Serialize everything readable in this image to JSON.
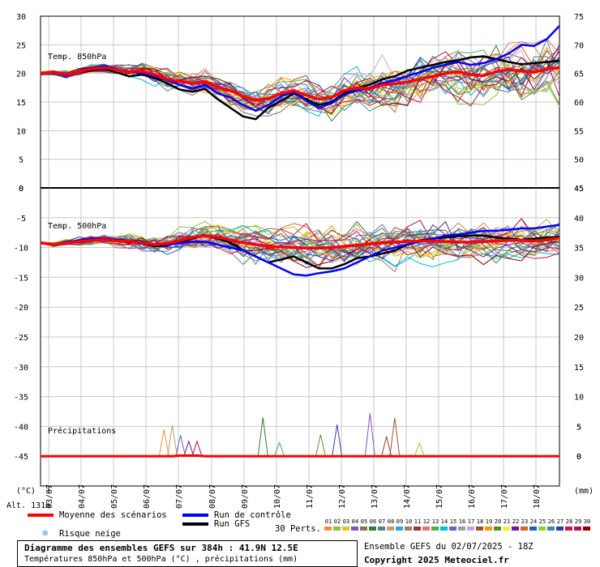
{
  "chart_data": {
    "type": "line",
    "panels": [
      {
        "title": "Temp. 850hPa",
        "left_axis_ticks": [
          30,
          25,
          20,
          15,
          10,
          5,
          0
        ],
        "right_axis_ticks": [
          75,
          70,
          65,
          60,
          55,
          50,
          45
        ],
        "ylim": [
          0,
          30
        ],
        "mean_label": "Moyenne des scénarios",
        "mean": [
          20,
          20.2,
          19.8,
          20.3,
          20.8,
          21,
          20.7,
          20.2,
          20.4,
          19.8,
          19,
          18.6,
          18.3,
          18.6,
          17.6,
          17,
          16,
          15.3,
          15.6,
          16.5,
          17,
          16.2,
          15.5,
          15.8,
          17,
          17.5,
          17.3,
          18,
          18.2,
          18.5,
          19,
          19.5,
          20,
          20.3,
          19.8,
          19.6,
          20.3,
          20.7,
          20.4,
          20.2,
          20.8,
          21
        ],
        "control": [
          20,
          20.3,
          19.5,
          20.5,
          21,
          21.3,
          20.8,
          20.2,
          20.1,
          19.5,
          18.8,
          18,
          17.4,
          18,
          16.5,
          15.8,
          14.5,
          13.5,
          14.5,
          16,
          16.8,
          15.2,
          14,
          14.8,
          16.3,
          17,
          17.5,
          18.3,
          18.8,
          19.6,
          20.2,
          21,
          21.5,
          22,
          21.5,
          21.8,
          22.5,
          23.5,
          25,
          24.8,
          26,
          28.3
        ],
        "gfs": [
          20,
          20.1,
          19.7,
          20.2,
          20.5,
          20.8,
          20.2,
          19.5,
          19.8,
          19.2,
          18.3,
          17.2,
          16.8,
          17.3,
          15.5,
          14,
          12.5,
          12,
          14,
          15.2,
          16.5,
          15.5,
          14.5,
          15,
          16.5,
          17.5,
          18,
          19,
          19.5,
          20.5,
          21,
          21.5,
          22,
          22.3,
          22.8,
          23,
          22.5,
          22,
          21.6,
          21.8,
          22,
          22.2
        ]
      },
      {
        "title": "Temp. 500hPa",
        "left_axis_ticks": [
          0,
          -5,
          -10,
          -15,
          -20,
          -25,
          -30,
          -35,
          -40,
          -45
        ],
        "right_axis_ticks": [
          45,
          40,
          35,
          30,
          25,
          20,
          15,
          10,
          5,
          0
        ],
        "ylim": [
          -50,
          0
        ],
        "mean": [
          -9.2,
          -9.5,
          -9.2,
          -9,
          -8.8,
          -8.6,
          -8.9,
          -8.9,
          -9.2,
          -9.5,
          -9.3,
          -8.8,
          -8.3,
          -8,
          -8.3,
          -8.7,
          -9.2,
          -9.5,
          -9.8,
          -9.9,
          -10,
          -10.1,
          -10.1,
          -10,
          -9.8,
          -9.6,
          -9.4,
          -9.2,
          -9.1,
          -9,
          -8.9,
          -8.9,
          -9,
          -9.1,
          -9.1,
          -9,
          -8.9,
          -8.8,
          -8.8,
          -8.9,
          -8.7,
          -8.4
        ],
        "control": [
          -9.3,
          -9.5,
          -9.1,
          -8.8,
          -8.5,
          -8.4,
          -8.7,
          -8.8,
          -9,
          -9.6,
          -9.5,
          -9.3,
          -9,
          -9,
          -9.5,
          -10,
          -10.5,
          -11.5,
          -12.5,
          -13.5,
          -14.5,
          -14.7,
          -14.3,
          -14,
          -13.5,
          -12.5,
          -11.5,
          -10.5,
          -10,
          -9.5,
          -9,
          -8.5,
          -8,
          -7.8,
          -7.5,
          -7.2,
          -7.2,
          -7,
          -6.8,
          -6.8,
          -6.5,
          -6.2
        ],
        "gfs": [
          -9.2,
          -9.4,
          -9.3,
          -9,
          -8.7,
          -8.5,
          -8.8,
          -9,
          -9.3,
          -9.8,
          -9.6,
          -9.1,
          -8.5,
          -8,
          -8.5,
          -9.2,
          -10.5,
          -11.5,
          -12.5,
          -12,
          -11.5,
          -12.5,
          -13.5,
          -13.5,
          -12.8,
          -11.8,
          -11.5,
          -11,
          -10.5,
          -9.5,
          -8.8,
          -8.5,
          -8.3,
          -8.1,
          -8,
          -8,
          -8.3,
          -8.5,
          -8.7,
          -8.5,
          -8.3,
          -8.2
        ]
      },
      {
        "title": "Précipitations",
        "right_axis_ticks": [
          5,
          0
        ],
        "spikes_mm": [
          {
            "i": 15,
            "v": 4.5
          },
          {
            "i": 16,
            "v": 5.2
          },
          {
            "i": 17,
            "v": 3.5
          },
          {
            "i": 18,
            "v": 2.5
          },
          {
            "i": 19,
            "v": 2.5
          },
          {
            "i": 27,
            "v": 6.5
          },
          {
            "i": 29,
            "v": 2.3
          },
          {
            "i": 34,
            "v": 3.6
          },
          {
            "i": 36,
            "v": 5.3
          },
          {
            "i": 40,
            "v": 7.2
          },
          {
            "i": 42,
            "v": 3.3
          },
          {
            "i": 43,
            "v": 6.4
          },
          {
            "i": 46,
            "v": 2.2
          }
        ]
      }
    ],
    "x_tick_labels": [
      "03/07",
      "04/07",
      "05/07",
      "06/07",
      "07/07",
      "08/07",
      "09/07",
      "10/07",
      "11/07",
      "12/07",
      "13/07",
      "14/07",
      "15/07",
      "16/07",
      "17/07",
      "18/07"
    ],
    "left_unit": "(°C)",
    "right_unit": "(mm)",
    "altitude": "Alt. 131m",
    "series_colors": {
      "mean": "#ff0000",
      "control": "#0000ff",
      "gfs": "#000000"
    }
  },
  "legend": {
    "mean": "Moyenne des scénarios",
    "control": "Run de contrôle",
    "gfs": "Run GFS",
    "snow": "Risque neige",
    "perts_label": "30 Perts.",
    "pert_numbers": [
      "01",
      "02",
      "03",
      "04",
      "05",
      "06",
      "07",
      "08",
      "09",
      "10",
      "11",
      "12",
      "13",
      "14",
      "15",
      "16",
      "17",
      "18",
      "19",
      "20",
      "21",
      "22",
      "23",
      "24",
      "25",
      "26",
      "27",
      "28",
      "29",
      "30"
    ],
    "pert_colors": [
      "#e8923a",
      "#8bc34a",
      "#e3c41c",
      "#7e57c2",
      "#8d6e63",
      "#2e7d32",
      "#607d8b",
      "#c0a060",
      "#29a8e0",
      "#ab7b5b",
      "#9b3b2f",
      "#e57373",
      "#4caf50",
      "#00bcd4",
      "#5c6bc0",
      "#9e9e9e",
      "#c8a2e8",
      "#a0522d",
      "#ff9800",
      "#558b2f",
      "#ffeb3b",
      "#6a1b9a",
      "#d2691e",
      "#1565c0",
      "#9acd32",
      "#4682b4",
      "#303f9f",
      "#c2185b",
      "#ad1457",
      "#8b0000"
    ]
  },
  "footer": {
    "title": "Diagramme des ensembles GEFS sur 384h : 41.9N 12.5E",
    "subtitle": "Températures 850hPa et 500hPa (°C) , précipitations (mm)",
    "run": "Ensemble GEFS du 02/07/2025 - 18Z",
    "copyright": "Copyright 2025 Meteociel.fr"
  }
}
